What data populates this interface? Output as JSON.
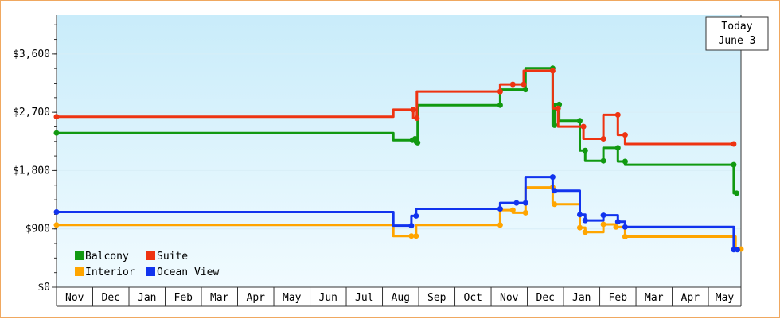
{
  "chart_data": {
    "type": "line",
    "title": "",
    "xlabel": "",
    "ylabel": "",
    "ylim": [
      0,
      4200
    ],
    "y_ticks": [
      "$0",
      "$900",
      "$1,800",
      "$2,700",
      "$3,600"
    ],
    "y_tick_values": [
      0,
      900,
      1800,
      2700,
      3600
    ],
    "x_months": [
      "Nov",
      "Dec",
      "Jan",
      "Feb",
      "Mar",
      "Apr",
      "May",
      "Jun",
      "Jul",
      "Aug",
      "Sep",
      "Oct",
      "Nov",
      "Dec",
      "Jan",
      "Feb",
      "Mar",
      "Apr",
      "May"
    ],
    "x_unit": "months since start of first Nov",
    "xlim": [
      0,
      18.9
    ],
    "grid": true,
    "step_lines": true,
    "legend_position": "bottom-left",
    "annotation": {
      "line1": "Today",
      "line2": "June 3"
    },
    "series": [
      {
        "name": "Balcony",
        "color": "#119911",
        "points": [
          [
            0,
            2380
          ],
          [
            9.3,
            2380
          ],
          [
            9.3,
            2270
          ],
          [
            9.83,
            2270
          ],
          [
            9.83,
            2290
          ],
          [
            9.9,
            2290
          ],
          [
            9.9,
            2230
          ],
          [
            9.97,
            2230
          ],
          [
            9.97,
            2810
          ],
          [
            12.25,
            2810
          ],
          [
            12.25,
            3050
          ],
          [
            12.95,
            3050
          ],
          [
            12.95,
            3380
          ],
          [
            13.7,
            3380
          ],
          [
            13.7,
            2500
          ],
          [
            13.75,
            2500
          ],
          [
            13.75,
            2820
          ],
          [
            13.88,
            2820
          ],
          [
            13.88,
            2570
          ],
          [
            14.45,
            2570
          ],
          [
            14.45,
            2110
          ],
          [
            14.6,
            2110
          ],
          [
            14.6,
            1950
          ],
          [
            15.1,
            1950
          ],
          [
            15.1,
            2150
          ],
          [
            15.5,
            2150
          ],
          [
            15.5,
            1940
          ],
          [
            15.7,
            1940
          ],
          [
            15.7,
            1890
          ],
          [
            18.7,
            1890
          ],
          [
            18.7,
            1450
          ],
          [
            18.78,
            1450
          ]
        ]
      },
      {
        "name": "Suite",
        "color": "#ee3311",
        "points": [
          [
            0,
            2630
          ],
          [
            9.3,
            2630
          ],
          [
            9.3,
            2740
          ],
          [
            9.85,
            2740
          ],
          [
            9.85,
            2610
          ],
          [
            9.95,
            2610
          ],
          [
            9.95,
            3020
          ],
          [
            12.25,
            3020
          ],
          [
            12.25,
            3130
          ],
          [
            12.6,
            3130
          ],
          [
            12.6,
            3130
          ],
          [
            12.9,
            3130
          ],
          [
            12.9,
            3340
          ],
          [
            13.7,
            3340
          ],
          [
            13.7,
            2760
          ],
          [
            13.85,
            2760
          ],
          [
            13.85,
            2480
          ],
          [
            14.55,
            2480
          ],
          [
            14.55,
            2290
          ],
          [
            15.1,
            2290
          ],
          [
            15.1,
            2660
          ],
          [
            15.5,
            2660
          ],
          [
            15.5,
            2350
          ],
          [
            15.7,
            2350
          ],
          [
            15.7,
            2210
          ],
          [
            18.7,
            2210
          ]
        ]
      },
      {
        "name": "Interior",
        "color": "#ffa500",
        "points": [
          [
            0,
            960
          ],
          [
            9.3,
            960
          ],
          [
            9.3,
            790
          ],
          [
            9.8,
            790
          ],
          [
            9.8,
            790
          ],
          [
            9.93,
            790
          ],
          [
            9.93,
            960
          ],
          [
            12.25,
            960
          ],
          [
            12.25,
            1190
          ],
          [
            12.6,
            1190
          ],
          [
            12.6,
            1150
          ],
          [
            12.95,
            1150
          ],
          [
            12.95,
            1540
          ],
          [
            13.7,
            1540
          ],
          [
            13.7,
            1280
          ],
          [
            13.75,
            1280
          ],
          [
            14.45,
            1280
          ],
          [
            14.45,
            920
          ],
          [
            14.6,
            920
          ],
          [
            14.6,
            850
          ],
          [
            15.1,
            850
          ],
          [
            15.1,
            970
          ],
          [
            15.45,
            970
          ],
          [
            15.45,
            930
          ],
          [
            15.7,
            930
          ],
          [
            15.7,
            780
          ],
          [
            18.75,
            780
          ],
          [
            18.75,
            590
          ],
          [
            18.9,
            590
          ]
        ]
      },
      {
        "name": "Ocean View",
        "color": "#1133ee",
        "points": [
          [
            0,
            1160
          ],
          [
            9.3,
            1160
          ],
          [
            9.3,
            950
          ],
          [
            9.8,
            950
          ],
          [
            9.8,
            1100
          ],
          [
            9.93,
            1100
          ],
          [
            9.93,
            1210
          ],
          [
            12.25,
            1210
          ],
          [
            12.25,
            1300
          ],
          [
            12.7,
            1300
          ],
          [
            12.7,
            1300
          ],
          [
            12.95,
            1300
          ],
          [
            12.95,
            1700
          ],
          [
            13.7,
            1700
          ],
          [
            13.7,
            1490
          ],
          [
            13.75,
            1490
          ],
          [
            14.45,
            1490
          ],
          [
            14.45,
            1120
          ],
          [
            14.6,
            1120
          ],
          [
            14.6,
            1030
          ],
          [
            15.1,
            1030
          ],
          [
            15.1,
            1110
          ],
          [
            15.5,
            1110
          ],
          [
            15.5,
            1010
          ],
          [
            15.7,
            1010
          ],
          [
            15.7,
            930
          ],
          [
            18.7,
            930
          ],
          [
            18.7,
            580
          ],
          [
            18.8,
            580
          ]
        ]
      }
    ]
  }
}
